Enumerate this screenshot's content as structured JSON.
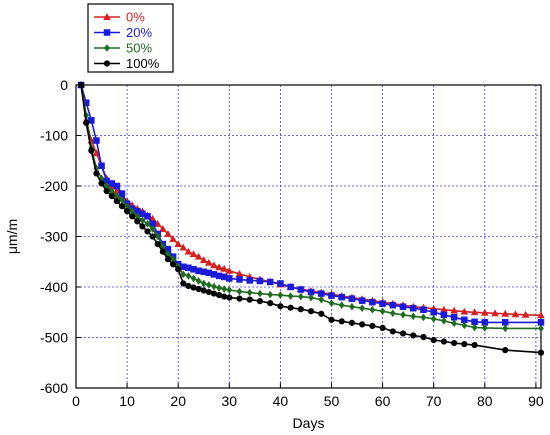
{
  "chart_data": {
    "type": "line",
    "xlabel": "Days",
    "ylabel": "μm/m",
    "xlim": [
      0,
      91
    ],
    "ylim": [
      -600,
      0
    ],
    "xticks": [
      0,
      10,
      20,
      30,
      40,
      50,
      60,
      70,
      80,
      90
    ],
    "yticks": [
      0,
      -100,
      -200,
      -300,
      -400,
      -500,
      -600
    ],
    "grid": true,
    "legend_position": "top-left",
    "series": [
      {
        "name": "0%",
        "color": "#d62020",
        "marker": "triangle",
        "points": [
          [
            1,
            0
          ],
          [
            2,
            -70
          ],
          [
            3,
            -110
          ],
          [
            4,
            -135
          ],
          [
            5,
            -160
          ],
          [
            6,
            -185
          ],
          [
            7,
            -200
          ],
          [
            8,
            -210
          ],
          [
            9,
            -220
          ],
          [
            10,
            -230
          ],
          [
            11,
            -238
          ],
          [
            12,
            -245
          ],
          [
            13,
            -250
          ],
          [
            14,
            -258
          ],
          [
            15,
            -265
          ],
          [
            16,
            -275
          ],
          [
            17,
            -285
          ],
          [
            18,
            -295
          ],
          [
            19,
            -305
          ],
          [
            20,
            -315
          ],
          [
            21,
            -322
          ],
          [
            22,
            -330
          ],
          [
            23,
            -335
          ],
          [
            24,
            -340
          ],
          [
            25,
            -347
          ],
          [
            26,
            -352
          ],
          [
            27,
            -357
          ],
          [
            28,
            -361
          ],
          [
            29,
            -364
          ],
          [
            30,
            -368
          ],
          [
            32,
            -374
          ],
          [
            34,
            -380
          ],
          [
            36,
            -385
          ],
          [
            38,
            -390
          ],
          [
            40,
            -395
          ],
          [
            42,
            -400
          ],
          [
            44,
            -404
          ],
          [
            46,
            -408
          ],
          [
            48,
            -411
          ],
          [
            50,
            -414
          ],
          [
            52,
            -418
          ],
          [
            54,
            -421
          ],
          [
            56,
            -424
          ],
          [
            58,
            -427
          ],
          [
            60,
            -430
          ],
          [
            62,
            -433
          ],
          [
            64,
            -436
          ],
          [
            66,
            -439
          ],
          [
            68,
            -441
          ],
          [
            70,
            -443
          ],
          [
            72,
            -445
          ],
          [
            74,
            -447
          ],
          [
            76,
            -449
          ],
          [
            78,
            -450
          ],
          [
            80,
            -451
          ],
          [
            82,
            -452
          ],
          [
            84,
            -453
          ],
          [
            86,
            -454
          ],
          [
            88,
            -455
          ],
          [
            91,
            -456
          ]
        ]
      },
      {
        "name": "20%",
        "color": "#1a1adc",
        "marker": "square",
        "points": [
          [
            1,
            0
          ],
          [
            2,
            -35
          ],
          [
            3,
            -70
          ],
          [
            4,
            -110
          ],
          [
            5,
            -160
          ],
          [
            6,
            -190
          ],
          [
            7,
            -195
          ],
          [
            8,
            -200
          ],
          [
            9,
            -215
          ],
          [
            10,
            -235
          ],
          [
            11,
            -245
          ],
          [
            12,
            -250
          ],
          [
            13,
            -255
          ],
          [
            14,
            -260
          ],
          [
            15,
            -275
          ],
          [
            16,
            -295
          ],
          [
            17,
            -315
          ],
          [
            18,
            -325
          ],
          [
            19,
            -340
          ],
          [
            20,
            -355
          ],
          [
            21,
            -360
          ],
          [
            22,
            -362
          ],
          [
            23,
            -365
          ],
          [
            24,
            -368
          ],
          [
            25,
            -370
          ],
          [
            26,
            -372
          ],
          [
            27,
            -375
          ],
          [
            28,
            -378
          ],
          [
            29,
            -380
          ],
          [
            30,
            -383
          ],
          [
            32,
            -385
          ],
          [
            34,
            -387
          ],
          [
            36,
            -388
          ],
          [
            38,
            -390
          ],
          [
            40,
            -393
          ],
          [
            42,
            -400
          ],
          [
            44,
            -405
          ],
          [
            46,
            -410
          ],
          [
            48,
            -413
          ],
          [
            50,
            -417
          ],
          [
            52,
            -420
          ],
          [
            54,
            -423
          ],
          [
            56,
            -427
          ],
          [
            58,
            -430
          ],
          [
            60,
            -433
          ],
          [
            62,
            -436
          ],
          [
            64,
            -439
          ],
          [
            66,
            -442
          ],
          [
            68,
            -445
          ],
          [
            70,
            -450
          ],
          [
            72,
            -455
          ],
          [
            74,
            -460
          ],
          [
            76,
            -465
          ],
          [
            78,
            -469
          ],
          [
            80,
            -470
          ],
          [
            84,
            -470
          ],
          [
            91,
            -470
          ]
        ]
      },
      {
        "name": "50%",
        "color": "#1f6b1f",
        "marker": "diamond",
        "points": [
          [
            1,
            0
          ],
          [
            2,
            -60
          ],
          [
            3,
            -125
          ],
          [
            4,
            -165
          ],
          [
            5,
            -185
          ],
          [
            6,
            -200
          ],
          [
            7,
            -210
          ],
          [
            8,
            -220
          ],
          [
            9,
            -228
          ],
          [
            10,
            -240
          ],
          [
            11,
            -250
          ],
          [
            12,
            -260
          ],
          [
            13,
            -268
          ],
          [
            14,
            -275
          ],
          [
            15,
            -285
          ],
          [
            16,
            -300
          ],
          [
            17,
            -320
          ],
          [
            18,
            -335
          ],
          [
            19,
            -345
          ],
          [
            20,
            -360
          ],
          [
            21,
            -375
          ],
          [
            22,
            -378
          ],
          [
            23,
            -383
          ],
          [
            24,
            -388
          ],
          [
            25,
            -393
          ],
          [
            26,
            -396
          ],
          [
            27,
            -399
          ],
          [
            28,
            -402
          ],
          [
            29,
            -404
          ],
          [
            30,
            -406
          ],
          [
            32,
            -409
          ],
          [
            34,
            -411
          ],
          [
            36,
            -413
          ],
          [
            38,
            -415
          ],
          [
            40,
            -416
          ],
          [
            42,
            -418
          ],
          [
            44,
            -419
          ],
          [
            46,
            -421
          ],
          [
            48,
            -425
          ],
          [
            50,
            -432
          ],
          [
            52,
            -436
          ],
          [
            54,
            -439
          ],
          [
            56,
            -442
          ],
          [
            58,
            -445
          ],
          [
            60,
            -448
          ],
          [
            62,
            -452
          ],
          [
            64,
            -455
          ],
          [
            66,
            -458
          ],
          [
            68,
            -460
          ],
          [
            70,
            -463
          ],
          [
            72,
            -467
          ],
          [
            74,
            -472
          ],
          [
            76,
            -476
          ],
          [
            78,
            -480
          ],
          [
            80,
            -481
          ],
          [
            84,
            -482
          ],
          [
            91,
            -482
          ]
        ]
      },
      {
        "name": "100%",
        "color": "#000000",
        "marker": "circle",
        "points": [
          [
            1,
            0
          ],
          [
            2,
            -75
          ],
          [
            3,
            -130
          ],
          [
            4,
            -175
          ],
          [
            5,
            -195
          ],
          [
            6,
            -210
          ],
          [
            7,
            -220
          ],
          [
            8,
            -230
          ],
          [
            9,
            -240
          ],
          [
            10,
            -250
          ],
          [
            11,
            -260
          ],
          [
            12,
            -270
          ],
          [
            13,
            -280
          ],
          [
            14,
            -290
          ],
          [
            15,
            -300
          ],
          [
            16,
            -315
          ],
          [
            17,
            -330
          ],
          [
            18,
            -345
          ],
          [
            19,
            -355
          ],
          [
            20,
            -365
          ],
          [
            21,
            -393
          ],
          [
            22,
            -398
          ],
          [
            23,
            -401
          ],
          [
            24,
            -404
          ],
          [
            25,
            -407
          ],
          [
            26,
            -410
          ],
          [
            27,
            -413
          ],
          [
            28,
            -416
          ],
          [
            29,
            -419
          ],
          [
            30,
            -421
          ],
          [
            32,
            -423
          ],
          [
            34,
            -425
          ],
          [
            36,
            -428
          ],
          [
            38,
            -432
          ],
          [
            40,
            -438
          ],
          [
            42,
            -441
          ],
          [
            44,
            -444
          ],
          [
            46,
            -448
          ],
          [
            48,
            -453
          ],
          [
            50,
            -465
          ],
          [
            52,
            -468
          ],
          [
            54,
            -471
          ],
          [
            56,
            -474
          ],
          [
            58,
            -477
          ],
          [
            60,
            -481
          ],
          [
            62,
            -488
          ],
          [
            64,
            -492
          ],
          [
            66,
            -496
          ],
          [
            68,
            -499
          ],
          [
            70,
            -505
          ],
          [
            72,
            -508
          ],
          [
            74,
            -511
          ],
          [
            76,
            -513
          ],
          [
            78,
            -515
          ],
          [
            84,
            -525
          ],
          [
            91,
            -530
          ]
        ]
      }
    ]
  }
}
